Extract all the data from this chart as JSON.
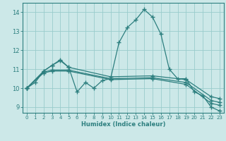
{
  "xlabel": "Humidex (Indice chaleur)",
  "xlim": [
    -0.5,
    23.5
  ],
  "ylim": [
    8.7,
    14.5
  ],
  "yticks": [
    9,
    10,
    11,
    12,
    13,
    14
  ],
  "xticks": [
    0,
    1,
    2,
    3,
    4,
    5,
    6,
    7,
    8,
    9,
    10,
    11,
    12,
    13,
    14,
    15,
    16,
    17,
    18,
    19,
    20,
    21,
    22,
    23
  ],
  "bg_color": "#cce8e8",
  "grid_color": "#99cccc",
  "line_color": "#2d7f7f",
  "lines": [
    {
      "x": [
        0,
        1,
        2,
        3,
        4,
        5,
        6,
        7,
        8,
        9,
        10,
        11,
        12,
        13,
        14,
        15,
        16,
        17,
        18,
        19,
        20,
        21,
        22,
        23
      ],
      "y": [
        10.0,
        10.3,
        10.9,
        11.2,
        11.5,
        11.1,
        9.8,
        10.3,
        10.0,
        10.4,
        10.5,
        12.4,
        13.2,
        13.6,
        14.15,
        13.75,
        12.85,
        11.0,
        10.5,
        10.5,
        9.8,
        9.6,
        9.0,
        8.8
      ]
    },
    {
      "x": [
        0,
        2,
        3,
        4,
        5,
        10,
        15,
        19,
        22,
        23
      ],
      "y": [
        10.0,
        10.9,
        11.2,
        11.45,
        11.1,
        10.6,
        10.65,
        10.45,
        9.55,
        9.45
      ]
    },
    {
      "x": [
        0,
        2,
        3,
        5,
        10,
        15,
        19,
        22,
        23
      ],
      "y": [
        10.0,
        10.85,
        10.95,
        10.95,
        10.5,
        10.55,
        10.3,
        9.35,
        9.25
      ]
    },
    {
      "x": [
        0,
        2,
        3,
        5,
        10,
        15,
        19,
        22,
        23
      ],
      "y": [
        10.0,
        10.8,
        10.9,
        10.9,
        10.45,
        10.5,
        10.2,
        9.2,
        9.1
      ]
    }
  ]
}
